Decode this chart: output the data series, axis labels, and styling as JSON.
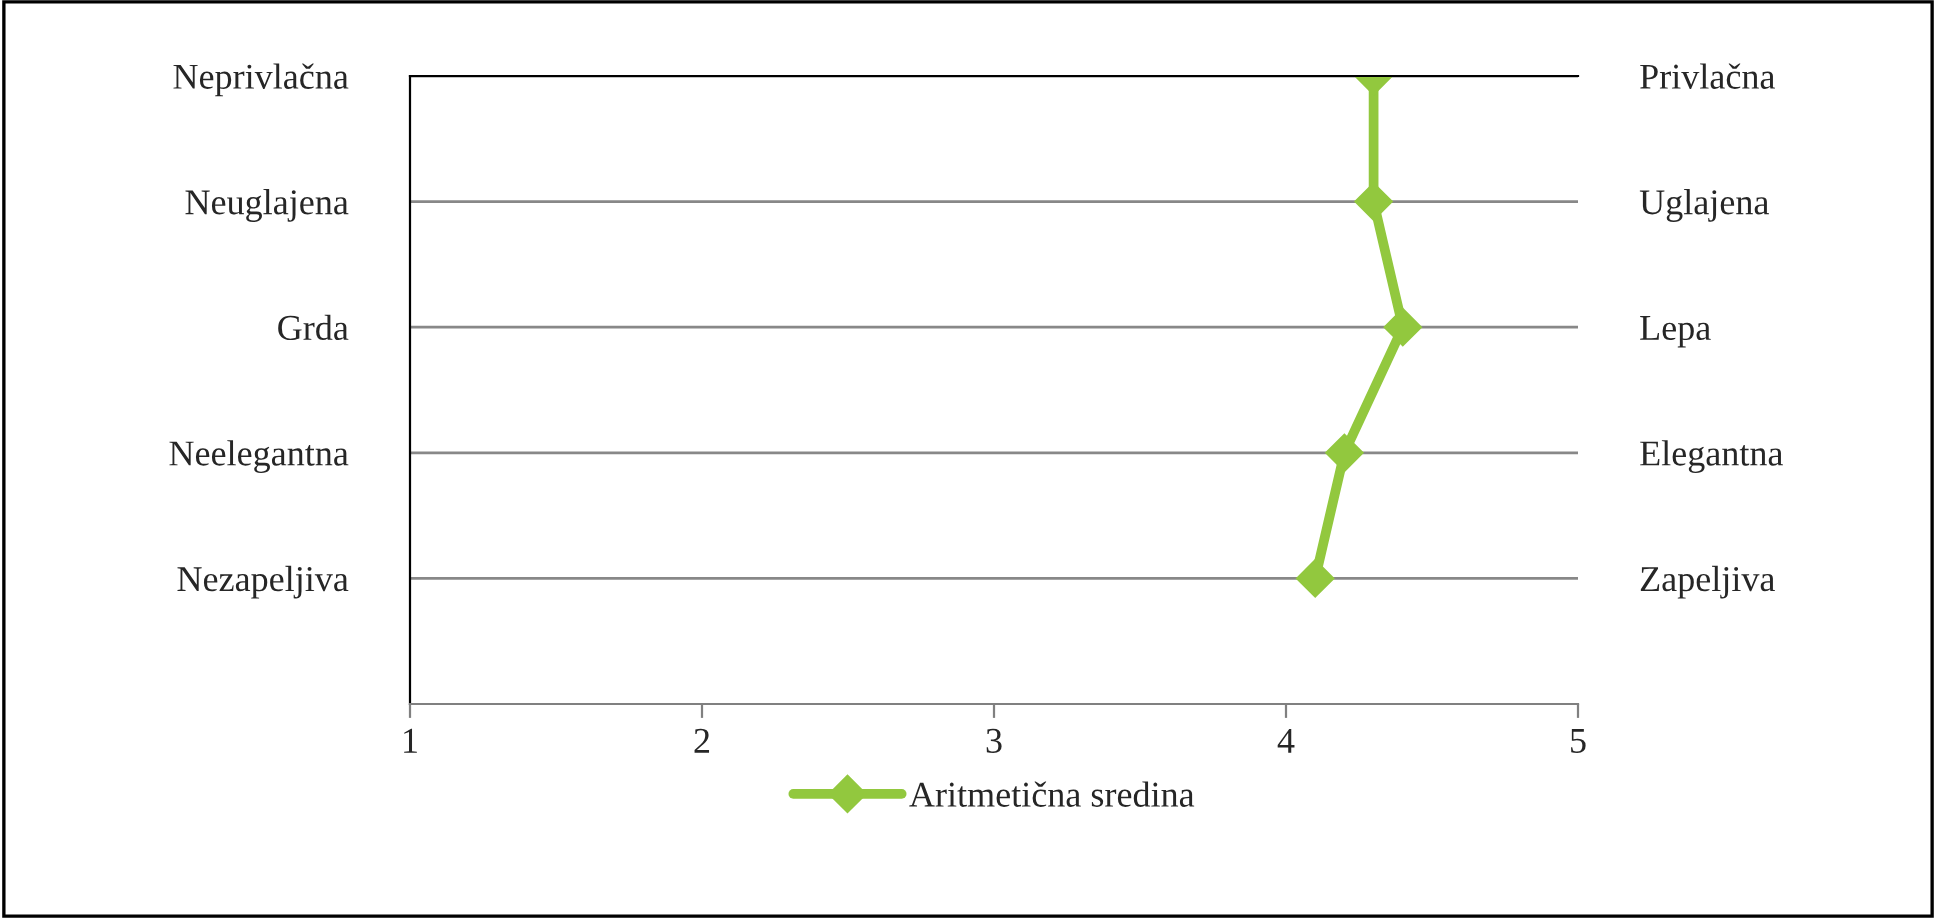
{
  "chart_data": {
    "type": "line",
    "orientation": "horizontal",
    "categories": [
      "Neprivlačna",
      "Neuglajena",
      "Grda",
      "Neelegantna",
      "Nezapeljiva"
    ],
    "y2_categories": [
      "Privlačna",
      "Uglajena",
      "Lepa",
      "Elegantna",
      "Zapeljiva"
    ],
    "series": [
      {
        "name": "Aritmetična sredina",
        "color": "#92c83e",
        "values": [
          4.3,
          4.3,
          4.4,
          4.2,
          4.1
        ]
      }
    ],
    "xlim": [
      1,
      5
    ],
    "xticks": [
      1,
      2,
      3,
      4,
      5
    ],
    "grid": "y",
    "legend": "bottom",
    "marker": "diamond",
    "line_style": "solid"
  }
}
